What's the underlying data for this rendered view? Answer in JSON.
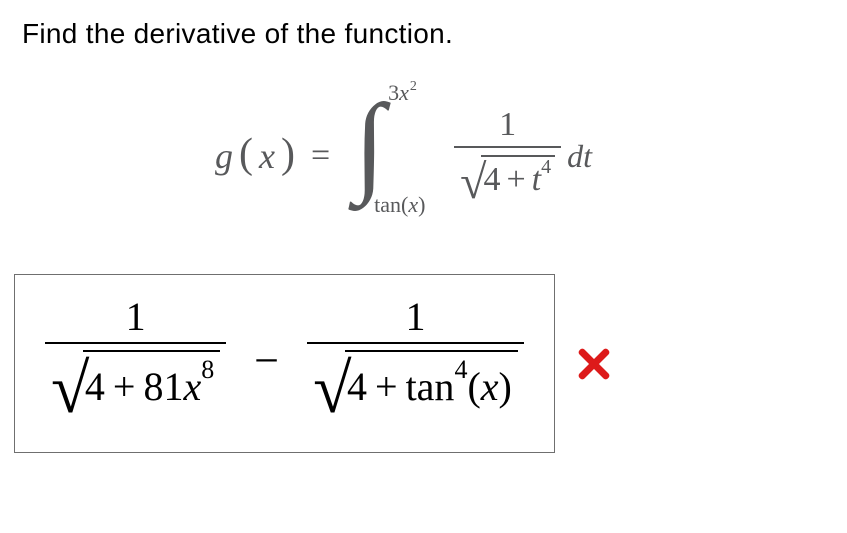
{
  "prompt_text": "Find the derivative of the function.",
  "colors": {
    "page_bg": "#ffffff",
    "prompt_text": "#000000",
    "equation_gray": "#58595b",
    "answer_black": "#000000",
    "box_border": "#6f6f6f",
    "incorrect_red": "#dd1a1a"
  },
  "equation": {
    "lhs_function": "g",
    "lhs_var": "x",
    "eq_sign": "=",
    "integral": {
      "upper_coeff": "3",
      "upper_var": "x",
      "upper_exp": "2",
      "lower_fn": "tan",
      "lower_arg": "x"
    },
    "integrand": {
      "numerator": "1",
      "inside_sqrt_const": "4",
      "plus": "+",
      "inside_sqrt_var": "t",
      "inside_sqrt_exp": "4"
    },
    "dt": "dt"
  },
  "answer": {
    "term1": {
      "numerator": "1",
      "sqrt_const": "4",
      "plus": "+",
      "coeff": "81",
      "var": "x",
      "exp": "8"
    },
    "minus": "−",
    "term2": {
      "numerator": "1",
      "sqrt_const": "4",
      "plus": "+",
      "fn": "tan",
      "fn_exp": "4",
      "arg": "x"
    }
  },
  "feedback": {
    "status": "incorrect",
    "icon_name": "incorrect-x"
  }
}
